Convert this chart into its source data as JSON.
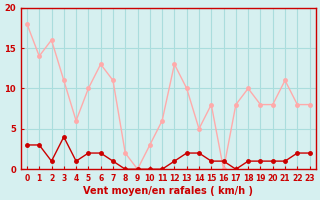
{
  "title": "",
  "xlabel": "Vent moyen/en rafales ( km/h )",
  "ylabel": "",
  "background_color": "#d6f0f0",
  "grid_color": "#aadddd",
  "x": [
    0,
    1,
    2,
    3,
    4,
    5,
    6,
    7,
    8,
    9,
    10,
    11,
    12,
    13,
    14,
    15,
    16,
    17,
    18,
    19,
    20,
    21,
    22,
    23
  ],
  "wind_mean": [
    3,
    3,
    1,
    4,
    1,
    2,
    2,
    1,
    0,
    0,
    0,
    0,
    1,
    2,
    2,
    1,
    1,
    0,
    1,
    1,
    1,
    1,
    2,
    2
  ],
  "wind_gust": [
    18,
    14,
    16,
    11,
    6,
    10,
    13,
    11,
    2,
    0,
    3,
    6,
    13,
    10,
    5,
    8,
    0,
    8,
    10,
    8,
    8,
    11,
    8,
    8
  ],
  "mean_color": "#cc0000",
  "gust_color": "#ffaaaa",
  "ylim": [
    0,
    20
  ],
  "yticks": [
    0,
    5,
    10,
    15,
    20
  ],
  "xticks": [
    0,
    1,
    2,
    3,
    4,
    5,
    6,
    7,
    8,
    9,
    10,
    11,
    12,
    13,
    14,
    15,
    16,
    17,
    18,
    19,
    20,
    21,
    22,
    23
  ]
}
